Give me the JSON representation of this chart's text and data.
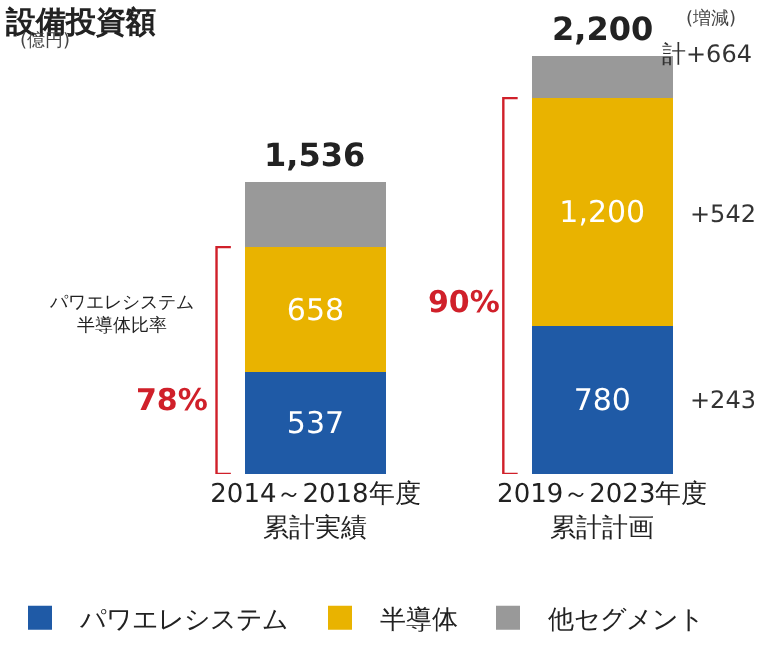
{
  "chart_data": {
    "type": "bar",
    "title": "設備投資額",
    "subtitle": "(億円)",
    "stacked": true,
    "categories": [
      "2014～2018年度累計実績",
      "2019～2023年度累計計画"
    ],
    "series": [
      {
        "name": "パワエレシステム",
        "color": "#1f5aa6",
        "values": [
          537,
          780
        ],
        "value_labels": [
          "537",
          "780"
        ]
      },
      {
        "name": "半導体",
        "color": "#e9b300",
        "values": [
          658,
          1200
        ],
        "value_labels": [
          "658",
          "1,200"
        ]
      },
      {
        "name": "他セグメント",
        "color": "#999999",
        "values": [
          341,
          220
        ],
        "value_labels": [
          null,
          null
        ]
      }
    ],
    "totals": [
      "1,536",
      "2,200"
    ],
    "annotations": [
      "(増減)",
      "パワエレシステム半導体比率",
      "78%",
      "90%",
      "+243",
      "+542",
      "計+664"
    ],
    "legend": "bottom left"
  }
}
